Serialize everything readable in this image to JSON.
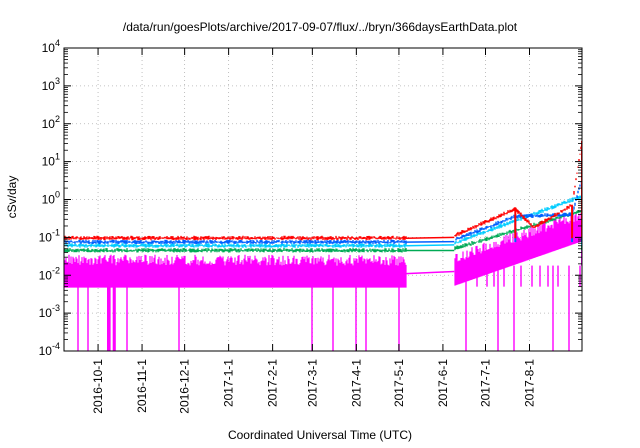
{
  "chart_data": {
    "type": "line",
    "title": "/data/run/goesPlots/archive/2017-09-07/flux/../bryn/366daysEarthData.plot",
    "xlabel": "Coordinated Universal Time (UTC)",
    "ylabel": "cSv/day",
    "y_scale": "log",
    "ylim": [
      0.0001,
      10000
    ],
    "y_ticks": [
      {
        "base": "10",
        "exp": "-4",
        "value": 0.0001
      },
      {
        "base": "10",
        "exp": "-3",
        "value": 0.001
      },
      {
        "base": "10",
        "exp": "-2",
        "value": 0.01
      },
      {
        "base": "10",
        "exp": "-1",
        "value": 0.1
      },
      {
        "base": "10",
        "exp": "0",
        "value": 1
      },
      {
        "base": "10",
        "exp": "1",
        "value": 10
      },
      {
        "base": "10",
        "exp": "2",
        "value": 100
      },
      {
        "base": "10",
        "exp": "3",
        "value": 1000
      },
      {
        "base": "10",
        "exp": "4",
        "value": 10000
      }
    ],
    "xlim": [
      "2016-09-07",
      "2017-09-07"
    ],
    "x_ticks": [
      {
        "label": "2016-10-1",
        "date": "2016-10-01"
      },
      {
        "label": "2016-11-1",
        "date": "2016-11-01"
      },
      {
        "label": "2016-12-1",
        "date": "2016-12-01"
      },
      {
        "label": "2017-1-1",
        "date": "2017-01-01"
      },
      {
        "label": "2017-2-1",
        "date": "2017-02-01"
      },
      {
        "label": "2017-3-1",
        "date": "2017-03-01"
      },
      {
        "label": "2017-4-1",
        "date": "2017-04-01"
      },
      {
        "label": "2017-5-1",
        "date": "2017-05-01"
      },
      {
        "label": "2017-6-1",
        "date": "2017-06-01"
      },
      {
        "label": "2017-7-1",
        "date": "2017-07-01"
      },
      {
        "label": "2017-8-1",
        "date": "2017-08-01"
      }
    ],
    "grid": true,
    "legend": "none",
    "data_gap": [
      "2017-05-06",
      "2017-06-09"
    ],
    "series": [
      {
        "color": "#ff0000",
        "baseline": 0.095,
        "values": [
          {
            "x": "2016-09-07",
            "y": 0.095
          },
          {
            "x": "2017-05-06",
            "y": 0.095
          },
          {
            "x": "2017-06-09",
            "y": 0.11
          },
          {
            "x": "2017-07-22",
            "y": 0.55
          },
          {
            "x": "2017-08-04",
            "y": 0.18
          },
          {
            "x": "2017-08-31",
            "y": 0.7
          },
          {
            "x": "2017-09-07",
            "y": 35
          }
        ]
      },
      {
        "color": "#0060ff",
        "baseline": 0.075,
        "values": [
          {
            "x": "2016-09-07",
            "y": 0.075
          },
          {
            "x": "2017-05-06",
            "y": 0.075
          },
          {
            "x": "2017-06-09",
            "y": 0.085
          },
          {
            "x": "2017-07-22",
            "y": 0.35
          },
          {
            "x": "2017-08-31",
            "y": 0.4
          },
          {
            "x": "2017-09-07",
            "y": 3.5
          }
        ]
      },
      {
        "color": "#00ccff",
        "baseline": 0.06,
        "values": [
          {
            "x": "2016-09-07",
            "y": 0.06
          },
          {
            "x": "2017-05-06",
            "y": 0.06
          },
          {
            "x": "2017-06-09",
            "y": 0.07
          },
          {
            "x": "2017-09-07",
            "y": 1.2
          }
        ]
      },
      {
        "color": "#00aa55",
        "baseline": 0.045,
        "values": [
          {
            "x": "2016-09-07",
            "y": 0.045
          },
          {
            "x": "2017-05-06",
            "y": 0.045
          },
          {
            "x": "2017-06-09",
            "y": 0.05
          },
          {
            "x": "2017-09-07",
            "y": 0.5
          }
        ]
      },
      {
        "color": "#ff00ff",
        "baseline": 0.018,
        "min": 0.0001,
        "values": [
          {
            "x": "2016-09-07",
            "y": 0.018
          },
          {
            "x": "2017-05-06",
            "y": 0.018
          },
          {
            "x": "2017-06-09",
            "y": 0.02
          },
          {
            "x": "2017-09-07",
            "y": 0.3
          }
        ]
      }
    ]
  }
}
